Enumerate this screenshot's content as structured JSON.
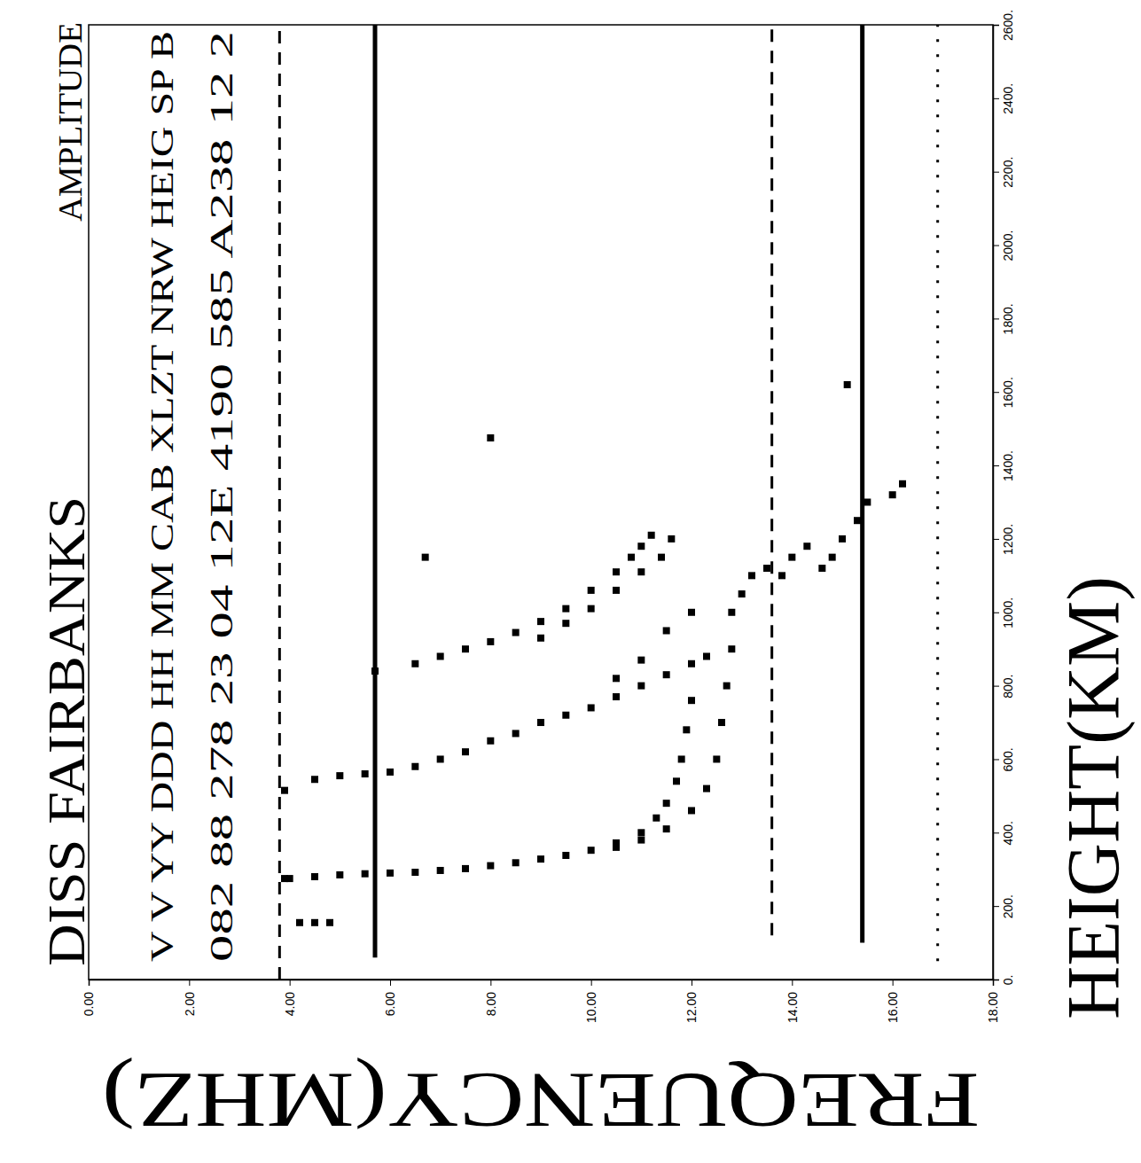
{
  "chart_data": {
    "type": "scatter",
    "title": "DISS FAIRBANKS",
    "subtitle": "AMPLITUDE",
    "annotations": [
      "V V YY DDD HH MM CAB XLZT NRW HEIG SP B",
      "082 88 278 23 04 12E 4190 585 A238 12 2"
    ],
    "x_label": "FREQUENCY(MHZ)",
    "y_label": "HEIGHT(KM)",
    "xlim": [
      0,
      18
    ],
    "ylim": [
      0,
      2600
    ],
    "xticks": [
      {
        "value": 0,
        "label": "0.00"
      },
      {
        "value": 2,
        "label": "2.00"
      },
      {
        "value": 4,
        "label": "4.00"
      },
      {
        "value": 6,
        "label": "6.00"
      },
      {
        "value": 8,
        "label": "8.00"
      },
      {
        "value": 10,
        "label": "10.00"
      },
      {
        "value": 12,
        "label": "12.00"
      },
      {
        "value": 14,
        "label": "14.00"
      },
      {
        "value": 16,
        "label": "16.00"
      },
      {
        "value": 18,
        "label": "18.00"
      }
    ],
    "yticks": [
      {
        "value": 0,
        "label": "0."
      },
      {
        "value": 200,
        "label": "200."
      },
      {
        "value": 400,
        "label": "400."
      },
      {
        "value": 600,
        "label": "600."
      },
      {
        "value": 800,
        "label": "800."
      },
      {
        "value": 1000,
        "label": "1000."
      },
      {
        "value": 1200,
        "label": "1200."
      },
      {
        "value": 1400,
        "label": "1400."
      },
      {
        "value": 1600,
        "label": "1600."
      },
      {
        "value": 1800,
        "label": "1800."
      },
      {
        "value": 2000,
        "label": "2000."
      },
      {
        "value": 2200,
        "label": "2200."
      },
      {
        "value": 2400,
        "label": "2400."
      },
      {
        "value": 2600,
        "label": "2600."
      }
    ],
    "grid": false,
    "series": [
      {
        "type": "line",
        "line_style": "dashed",
        "color": "#000000",
        "x": [
          3.8,
          3.8
        ],
        "values": [
          0,
          2600
        ]
      },
      {
        "type": "line",
        "line_style": "solid",
        "color": "#000000",
        "x": [
          5.7,
          5.7
        ],
        "values": [
          60,
          2600
        ]
      },
      {
        "type": "line",
        "line_style": "dashed",
        "color": "#000000",
        "x": [
          13.6,
          13.6
        ],
        "values": [
          120,
          2600
        ]
      },
      {
        "type": "line",
        "line_style": "solid",
        "color": "#000000",
        "x": [
          15.4,
          15.4
        ],
        "values": [
          100,
          2600
        ]
      },
      {
        "type": "line",
        "line_style": "dotted",
        "color": "#000000",
        "x": [
          16.9,
          16.9
        ],
        "values": [
          50,
          2600
        ]
      },
      {
        "type": "scatter",
        "marker": "square",
        "color": "#000000",
        "x": [
          4.2,
          4.5,
          4.8
        ],
        "values": [
          155,
          155,
          155
        ]
      },
      {
        "type": "scatter",
        "marker": "square",
        "color": "#000000",
        "x": [
          3.9,
          4.0,
          4.5,
          5.0,
          5.5,
          6.0,
          6.5,
          7.0,
          7.5,
          8.0,
          8.5,
          9.0,
          9.5,
          10.0,
          10.5,
          11.0,
          11.3,
          11.5,
          11.7,
          11.8,
          11.9,
          12.0
        ],
        "values": [
          275,
          275,
          280,
          285,
          288,
          290,
          292,
          297,
          302,
          310,
          318,
          328,
          338,
          352,
          372,
          400,
          440,
          480,
          540,
          600,
          680,
          760
        ]
      },
      {
        "type": "scatter",
        "marker": "square",
        "color": "#000000",
        "x": [
          10.5,
          11.0,
          11.5,
          12.0,
          12.3,
          12.5,
          12.6,
          12.7,
          12.8
        ],
        "values": [
          360,
          380,
          410,
          460,
          520,
          600,
          700,
          800,
          900
        ]
      },
      {
        "type": "scatter",
        "marker": "square",
        "color": "#000000",
        "x": [
          12.8,
          13.0,
          13.2,
          13.5,
          13.8,
          14.0,
          14.3,
          14.6,
          14.8,
          15.0,
          15.3,
          15.5,
          16.0,
          16.2
        ],
        "values": [
          1000,
          1050,
          1100,
          1120,
          1100,
          1150,
          1180,
          1120,
          1150,
          1200,
          1250,
          1300,
          1320,
          1350
        ]
      },
      {
        "type": "scatter",
        "marker": "square",
        "color": "#000000",
        "x": [
          3.9,
          4.5,
          5.0,
          5.5,
          6.0,
          6.5,
          7.0,
          7.5,
          8.0,
          8.5,
          9.0,
          9.5,
          10.0,
          10.5,
          11.0,
          11.5,
          12.0,
          12.3
        ],
        "values": [
          515,
          545,
          555,
          560,
          565,
          580,
          600,
          620,
          650,
          670,
          700,
          720,
          740,
          770,
          800,
          830,
          860,
          880
        ]
      },
      {
        "type": "scatter",
        "marker": "square",
        "color": "#000000",
        "x": [
          10.5,
          11.0,
          11.5,
          12.0
        ],
        "values": [
          820,
          870,
          950,
          1000
        ]
      },
      {
        "type": "scatter",
        "marker": "square",
        "color": "#000000",
        "x": [
          5.7,
          6.5,
          7.0,
          7.5,
          8.0,
          8.5,
          9.0,
          9.5,
          10.0,
          10.5,
          10.8,
          11.0,
          11.2
        ],
        "values": [
          840,
          860,
          880,
          900,
          920,
          945,
          975,
          1010,
          1060,
          1110,
          1150,
          1180,
          1210
        ]
      },
      {
        "type": "scatter",
        "marker": "square",
        "color": "#000000",
        "x": [
          9.0,
          9.5,
          10.0,
          10.5,
          11.0,
          11.4,
          11.6
        ],
        "values": [
          930,
          970,
          1010,
          1060,
          1110,
          1150,
          1200
        ]
      },
      {
        "type": "scatter",
        "marker": "square",
        "color": "#000000",
        "x": [
          6.7,
          8.0,
          15.1
        ],
        "values": [
          1150,
          1475,
          1620
        ]
      }
    ]
  }
}
